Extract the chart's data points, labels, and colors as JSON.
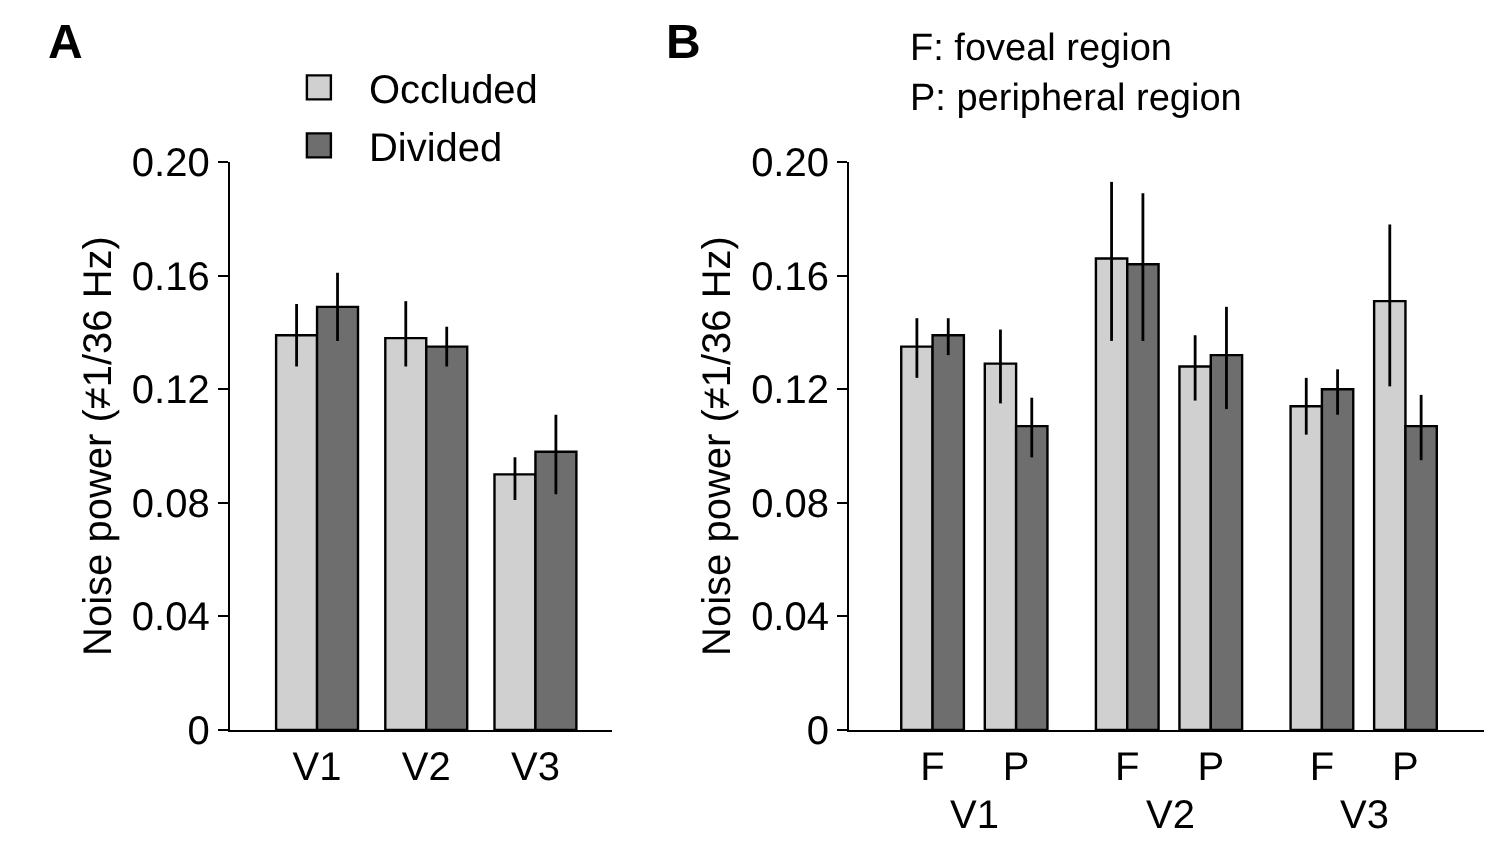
{
  "chart_data": [
    {
      "type": "bar",
      "title": "A",
      "ylabel": "Noise power (≠1/36 Hz)",
      "categories": [
        "V1",
        "V2",
        "V3"
      ],
      "ylim": [
        0,
        0.2
      ],
      "yticks": [
        {
          "value": 0,
          "label": "0"
        },
        {
          "value": 0.04,
          "label": "0.04"
        },
        {
          "value": 0.08,
          "label": "0.08"
        },
        {
          "value": 0.12,
          "label": "0.12"
        },
        {
          "value": 0.16,
          "label": "0.16"
        },
        {
          "value": 0.2,
          "label": "0.20"
        }
      ],
      "legend": "top",
      "series": [
        {
          "name": "Occluded",
          "color": "#d0d0d0",
          "values": [
            0.139,
            0.138,
            0.09
          ],
          "errors": [
            [
              0.128,
              0.15
            ],
            [
              0.128,
              0.151
            ],
            [
              0.081,
              0.096
            ]
          ]
        },
        {
          "name": "Divided",
          "color": "#6e6e6e",
          "values": [
            0.149,
            0.135,
            0.098
          ],
          "errors": [
            [
              0.137,
              0.161
            ],
            [
              0.128,
              0.142
            ],
            [
              0.083,
              0.111
            ]
          ]
        }
      ]
    },
    {
      "type": "bar",
      "title": "B",
      "ylabel": "Noise power (≠1/36 Hz)",
      "categories": [
        "F",
        "P",
        "F",
        "P",
        "F",
        "P"
      ],
      "ylim": [
        0,
        0.2
      ],
      "yticks": [
        {
          "value": 0,
          "label": "0"
        },
        {
          "value": 0.04,
          "label": "0.04"
        },
        {
          "value": 0.08,
          "label": "0.08"
        },
        {
          "value": 0.12,
          "label": "0.12"
        },
        {
          "value": 0.16,
          "label": "0.16"
        },
        {
          "value": 0.2,
          "label": "0.20"
        }
      ],
      "legend": false,
      "annotations": [
        "F: foveal region",
        "P: peripheral region",
        "V1",
        "V2",
        "V3"
      ],
      "series": [
        {
          "color": "#d0d0d0",
          "values": [
            0.135,
            0.129,
            0.166,
            0.128,
            0.114,
            0.151
          ],
          "errors": [
            [
              0.124,
              0.145
            ],
            [
              0.115,
              0.141
            ],
            [
              0.137,
              0.193
            ],
            [
              0.116,
              0.139
            ],
            [
              0.104,
              0.124
            ],
            [
              0.121,
              0.178
            ]
          ]
        },
        {
          "color": "#6e6e6e",
          "values": [
            0.139,
            0.107,
            0.164,
            0.132,
            0.12,
            0.107
          ],
          "errors": [
            [
              0.132,
              0.145
            ],
            [
              0.096,
              0.117
            ],
            [
              0.137,
              0.189
            ],
            [
              0.113,
              0.149
            ],
            [
              0.111,
              0.127
            ],
            [
              0.095,
              0.118
            ]
          ]
        }
      ]
    }
  ]
}
